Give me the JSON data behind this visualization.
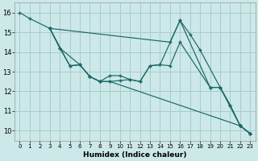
{
  "xlabel": "Humidex (Indice chaleur)",
  "bg_color": "#cce8e8",
  "grid_color": "#aacccc",
  "line_color": "#1a6666",
  "xlim": [
    -0.5,
    23.5
  ],
  "ylim": [
    9.5,
    16.5
  ],
  "xticks": [
    0,
    1,
    2,
    3,
    4,
    5,
    6,
    7,
    8,
    9,
    10,
    11,
    12,
    13,
    14,
    15,
    16,
    17,
    18,
    19,
    20,
    21,
    22,
    23
  ],
  "yticks": [
    10,
    11,
    12,
    13,
    14,
    15,
    16
  ],
  "series": [
    {
      "x": [
        0,
        1,
        3,
        15,
        16,
        17,
        18,
        20,
        21,
        22,
        23
      ],
      "y": [
        16.0,
        15.7,
        15.2,
        14.5,
        15.6,
        14.9,
        14.1,
        12.2,
        11.3,
        10.25,
        9.85
      ]
    },
    {
      "x": [
        3,
        4,
        5,
        6,
        7,
        8,
        9,
        10,
        11,
        12,
        13,
        14,
        15,
        16,
        19,
        20,
        21,
        22,
        23
      ],
      "y": [
        15.2,
        14.2,
        13.3,
        13.35,
        12.75,
        12.5,
        12.8,
        12.8,
        12.6,
        12.5,
        13.3,
        13.35,
        13.3,
        14.5,
        12.2,
        12.2,
        11.3,
        10.25,
        9.85
      ]
    },
    {
      "x": [
        3,
        4,
        6,
        7,
        8,
        9,
        10,
        11,
        12,
        13,
        14,
        16,
        19,
        20,
        22,
        23
      ],
      "y": [
        15.2,
        14.2,
        13.35,
        12.75,
        12.5,
        12.5,
        12.55,
        12.6,
        12.5,
        13.3,
        13.35,
        15.6,
        12.2,
        12.2,
        10.25,
        9.85
      ]
    },
    {
      "x": [
        3,
        5,
        6,
        7,
        8,
        9,
        22,
        23
      ],
      "y": [
        15.2,
        13.3,
        13.35,
        12.75,
        12.5,
        12.5,
        10.25,
        9.85
      ]
    }
  ]
}
